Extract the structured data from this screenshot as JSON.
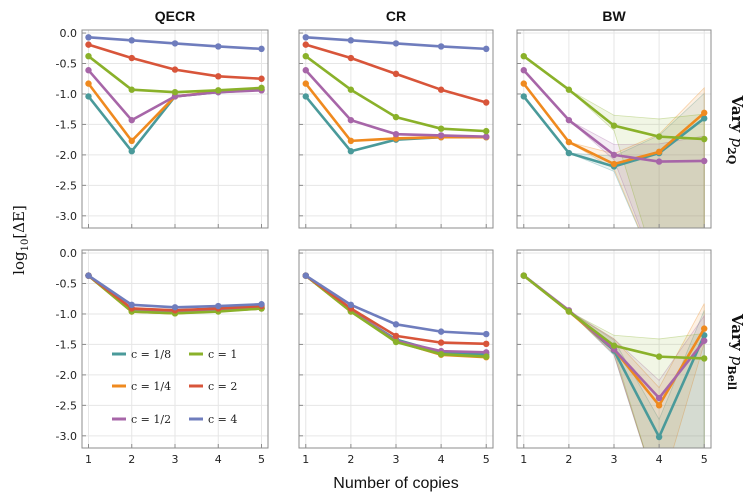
{
  "labels": {
    "x_axis": "Number of copies",
    "y_axis": "log10[ΔE]",
    "y_axis_main": "log",
    "y_axis_sub": "10",
    "y_axis_bracket": "[ΔE]"
  },
  "column_titles": [
    "QECR",
    "CR",
    "BW"
  ],
  "row_titles": [
    {
      "full": "Vary p2Q",
      "prefix": "Vary ",
      "sym": "p",
      "sub": "2Q"
    },
    {
      "full": "Vary pBell",
      "prefix": "Vary ",
      "sym": "p",
      "sub": "Bell"
    }
  ],
  "x_ticks": [
    "1",
    "2",
    "3",
    "4",
    "5"
  ],
  "y_ticks": [
    "0.0",
    "-0.5",
    "-1.0",
    "-1.5",
    "-2.0",
    "-2.5",
    "-3.0"
  ],
  "legend": [
    {
      "label": "c = 1/8",
      "color": "#4a9a9a"
    },
    {
      "label": "c = 1",
      "color": "#8ab12a"
    },
    {
      "label": "c = 1/4",
      "color": "#ef8a1f"
    },
    {
      "label": "c = 2",
      "color": "#d8553a"
    },
    {
      "label": "c = 1/2",
      "color": "#a766a8"
    },
    {
      "label": "c = 4",
      "color": "#6f7dbd"
    }
  ],
  "chart_data": [
    {
      "type": "line",
      "row": "Vary p2Q",
      "title": "QECR",
      "x": [
        1,
        2,
        3,
        4,
        5
      ],
      "xlabel": "Number of copies",
      "ylabel": "log10[ΔE]",
      "xlim": [
        0.85,
        5.15
      ],
      "ylim": [
        -3.2,
        0.05
      ],
      "series": [
        {
          "name": "c = 1/8",
          "values": [
            -1.04,
            -1.94,
            -1.04,
            -0.97,
            -0.93
          ]
        },
        {
          "name": "c = 1/4",
          "values": [
            -0.83,
            -1.77,
            -1.04,
            -0.96,
            -0.93
          ]
        },
        {
          "name": "c = 1/2",
          "values": [
            -0.61,
            -1.43,
            -1.04,
            -0.97,
            -0.94
          ]
        },
        {
          "name": "c = 1",
          "values": [
            -0.38,
            -0.93,
            -0.97,
            -0.94,
            -0.9
          ]
        },
        {
          "name": "c = 2",
          "values": [
            -0.19,
            -0.41,
            -0.6,
            -0.71,
            -0.75
          ]
        },
        {
          "name": "c = 4",
          "values": [
            -0.07,
            -0.12,
            -0.17,
            -0.22,
            -0.26
          ]
        }
      ]
    },
    {
      "type": "line",
      "row": "Vary p2Q",
      "title": "CR",
      "x": [
        1,
        2,
        3,
        4,
        5
      ],
      "xlabel": "Number of copies",
      "ylabel": "log10[ΔE]",
      "xlim": [
        0.85,
        5.15
      ],
      "ylim": [
        -3.2,
        0.05
      ],
      "series": [
        {
          "name": "c = 1/8",
          "values": [
            -1.04,
            -1.94,
            -1.75,
            -1.71,
            -1.71
          ]
        },
        {
          "name": "c = 1/4",
          "values": [
            -0.83,
            -1.77,
            -1.73,
            -1.71,
            -1.71
          ]
        },
        {
          "name": "c = 1/2",
          "values": [
            -0.61,
            -1.43,
            -1.66,
            -1.68,
            -1.7
          ]
        },
        {
          "name": "c = 1",
          "values": [
            -0.38,
            -0.93,
            -1.38,
            -1.57,
            -1.61
          ]
        },
        {
          "name": "c = 2",
          "values": [
            -0.19,
            -0.41,
            -0.67,
            -0.93,
            -1.14
          ]
        },
        {
          "name": "c = 4",
          "values": [
            -0.07,
            -0.12,
            -0.17,
            -0.22,
            -0.26
          ]
        }
      ]
    },
    {
      "type": "line",
      "row": "Vary p2Q",
      "title": "BW",
      "x": [
        1,
        2,
        3,
        4,
        5
      ],
      "xlabel": "Number of copies",
      "ylabel": "log10[ΔE]",
      "xlim": [
        0.85,
        5.15
      ],
      "ylim": [
        -3.2,
        0.05
      ],
      "series": [
        {
          "name": "c = 1/8",
          "values": [
            -1.04,
            -1.97,
            -2.19,
            -1.97,
            -1.4
          ]
        },
        {
          "name": "c = 1/4",
          "values": [
            -0.83,
            -1.79,
            -2.15,
            -1.95,
            -1.31
          ]
        },
        {
          "name": "c = 1/2",
          "values": [
            -0.61,
            -1.43,
            -2.0,
            -2.11,
            -2.1
          ]
        },
        {
          "name": "c = 1",
          "values": [
            -0.38,
            -0.93,
            -1.52,
            -1.7,
            -1.74
          ]
        }
      ]
    },
    {
      "type": "line",
      "row": "Vary pBell",
      "title": "QECR",
      "x": [
        1,
        2,
        3,
        4,
        5
      ],
      "xlabel": "Number of copies",
      "ylabel": "log10[ΔE]",
      "xlim": [
        0.85,
        5.15
      ],
      "ylim": [
        -3.2,
        0.05
      ],
      "series": [
        {
          "name": "c = 1/8",
          "values": [
            -0.37,
            -0.95,
            -0.98,
            -0.95,
            -0.91
          ]
        },
        {
          "name": "c = 1/4",
          "values": [
            -0.37,
            -0.96,
            -0.99,
            -0.95,
            -0.91
          ]
        },
        {
          "name": "c = 1/2",
          "values": [
            -0.37,
            -0.94,
            -0.97,
            -0.94,
            -0.9
          ]
        },
        {
          "name": "c = 1",
          "values": [
            -0.37,
            -0.96,
            -0.99,
            -0.96,
            -0.91
          ]
        },
        {
          "name": "c = 2",
          "values": [
            -0.37,
            -0.91,
            -0.94,
            -0.91,
            -0.87
          ]
        },
        {
          "name": "c = 4",
          "values": [
            -0.37,
            -0.85,
            -0.89,
            -0.87,
            -0.84
          ]
        }
      ]
    },
    {
      "type": "line",
      "row": "Vary pBell",
      "title": "CR",
      "x": [
        1,
        2,
        3,
        4,
        5
      ],
      "xlabel": "Number of copies",
      "ylabel": "log10[ΔE]",
      "xlim": [
        0.85,
        5.15
      ],
      "ylim": [
        -3.2,
        0.05
      ],
      "series": [
        {
          "name": "c = 1/8",
          "values": [
            -0.37,
            -0.95,
            -1.42,
            -1.63,
            -1.67
          ]
        },
        {
          "name": "c = 1/4",
          "values": [
            -0.37,
            -0.96,
            -1.45,
            -1.67,
            -1.71
          ]
        },
        {
          "name": "c = 1/2",
          "values": [
            -0.37,
            -0.94,
            -1.44,
            -1.61,
            -1.63
          ]
        },
        {
          "name": "c = 1",
          "values": [
            -0.37,
            -0.96,
            -1.46,
            -1.66,
            -1.7
          ]
        },
        {
          "name": "c = 2",
          "values": [
            -0.37,
            -0.91,
            -1.36,
            -1.47,
            -1.49
          ]
        },
        {
          "name": "c = 4",
          "values": [
            -0.37,
            -0.85,
            -1.17,
            -1.29,
            -1.33
          ]
        }
      ]
    },
    {
      "type": "line",
      "row": "Vary pBell",
      "title": "BW",
      "x": [
        1,
        2,
        3,
        4,
        5
      ],
      "xlabel": "Number of copies",
      "ylabel": "log10[ΔE]",
      "xlim": [
        0.85,
        5.15
      ],
      "ylim": [
        -3.2,
        0.05
      ],
      "series": [
        {
          "name": "c = 1/8",
          "values": [
            -0.37,
            -0.95,
            -1.6,
            -3.02,
            -1.35
          ]
        },
        {
          "name": "c = 1/4",
          "values": [
            -0.37,
            -0.96,
            -1.58,
            -2.5,
            -1.24
          ]
        },
        {
          "name": "c = 1/2",
          "values": [
            -0.37,
            -0.94,
            -1.58,
            -2.38,
            -1.44
          ]
        },
        {
          "name": "c = 1",
          "values": [
            -0.37,
            -0.96,
            -1.52,
            -1.7,
            -1.73
          ]
        }
      ]
    }
  ]
}
